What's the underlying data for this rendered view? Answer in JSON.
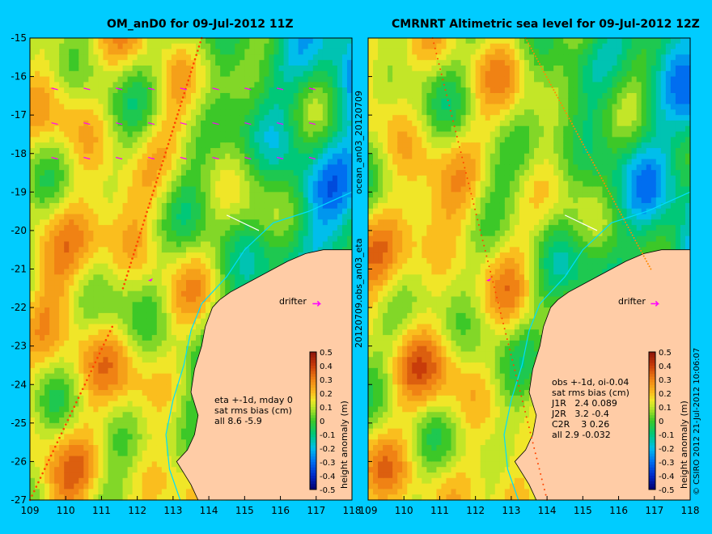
{
  "colors": {
    "background": "#00ccff",
    "land": "#ffcca6",
    "coast": "#00ddff",
    "vector": "#ff00ff",
    "track": "#ff4400"
  },
  "chart_data": [
    {
      "type": "heatmap",
      "title": "OM_anD0 for 09-Jul-2012 11Z",
      "xlim": [
        109,
        118
      ],
      "ylim": [
        -27,
        -15
      ],
      "xticks": [
        "109",
        "110",
        "111",
        "112",
        "113",
        "114",
        "115",
        "116",
        "117",
        "118"
      ],
      "yticks": [
        "-15",
        "-16",
        "-17",
        "-18",
        "-19",
        "-20",
        "-21",
        "-22",
        "-23",
        "-24",
        "-25",
        "-26",
        "-27"
      ],
      "side_label": "ocean_an03_20120709",
      "drifter_label": "drifter",
      "annotation": [
        "eta +-1d, mday 0",
        "sat rms bias (cm)",
        "all 8.6 -5.9"
      ],
      "colorbar": {
        "label": "height anomaly (m)",
        "ticks": [
          "0.5",
          "0.4",
          "0.3",
          "0.2",
          "0.1",
          "0",
          "-0.1",
          "-0.2",
          "-0.3",
          "-0.4",
          "-0.5"
        ],
        "range": [
          -0.5,
          0.5
        ]
      }
    },
    {
      "type": "heatmap",
      "title": "CMRNRT Altimetric sea level  for 09-Jul-2012 12Z",
      "xlim": [
        109,
        118
      ],
      "ylim": [
        -27,
        -15
      ],
      "xticks": [
        "109",
        "110",
        "111",
        "112",
        "113",
        "114",
        "115",
        "116",
        "117",
        "118"
      ],
      "side_label": "20120709.obs_an03_eta",
      "drifter_label": "drifter",
      "annotation": [
        "obs +-1d, oi-0.04",
        "sat rms bias (cm)",
        "J1R   2.4 0.089",
        "J2R   3.2 -0.4",
        "C2R    3 0.26",
        "all 2.9 -0.032"
      ],
      "colorbar": {
        "label": "height anomaly (m)",
        "ticks": [
          "0.5",
          "0.4",
          "0.3",
          "0.2",
          "0.1",
          "0",
          "-0.1",
          "-0.2",
          "-0.3",
          "-0.4",
          "-0.5"
        ],
        "range": [
          -0.5,
          0.5
        ]
      },
      "copyright": "© CSIRO 2012   21-Jul-2012 10:06:07"
    }
  ]
}
